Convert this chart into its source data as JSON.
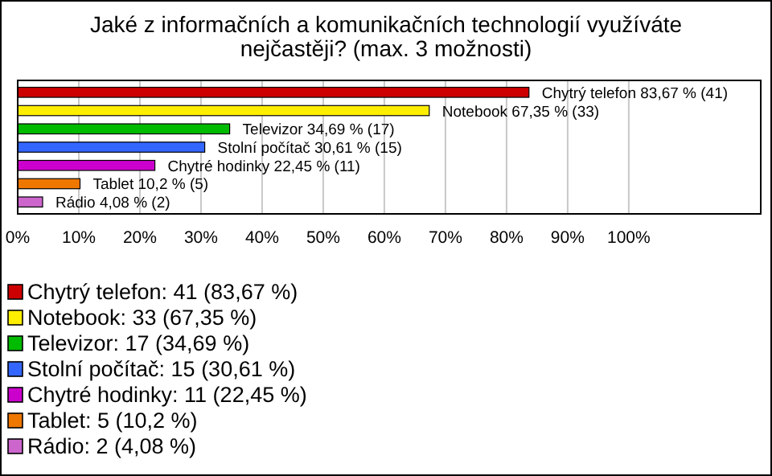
{
  "chart_data": {
    "type": "bar",
    "orientation": "horizontal",
    "title": "Jaké z informačních a komunikačních technologií využíváte nejčastěji? (max. 3 možnosti)",
    "categories": [
      null,
      null,
      null,
      null,
      null,
      null,
      null
    ],
    "values": [
      83.67,
      67.35,
      34.69,
      30.61,
      22.45,
      10.2,
      4.08
    ],
    "colors": [
      "#cc0000",
      "#ffee00",
      "#00bb00",
      "#3366ff",
      "#cc00cc",
      "#ee7700",
      "#cc66cc"
    ],
    "value_labels": [
      "Chytrý telefon 83,67 % (41)",
      "Notebook 67,35 % (33)",
      "Televizor 34,69 % (17)",
      "Stolní počítač 30,61 % (15)",
      "Chytré hodinky 22,45 % (11)",
      "Tablet 10,2 % (5)",
      "Rádio 4,08 % (2)"
    ],
    "xlim": [
      0,
      121.6
    ],
    "xticks": [
      {
        "value": 0,
        "label": "0%"
      },
      {
        "value": 10,
        "label": "10%"
      },
      {
        "value": 20,
        "label": "20%"
      },
      {
        "value": 30,
        "label": "30%"
      },
      {
        "value": 40,
        "label": "40%"
      },
      {
        "value": 50,
        "label": "50%"
      },
      {
        "value": 60,
        "label": "60%"
      },
      {
        "value": 70,
        "label": "70%"
      },
      {
        "value": 80,
        "label": "80%"
      },
      {
        "value": 90,
        "label": "90%"
      },
      {
        "value": 100,
        "label": "100%"
      }
    ],
    "grid": "x",
    "annotations": [
      "Chytrý telefon: 41 (83,67 %)",
      "Notebook: 33 (67,35 %)",
      "Televizor: 17 (34,69 %)",
      "Stolní počítač: 15 (30,61 %)",
      "Chytré hodinky: 11 (22,45 %)",
      "Tablet: 5 (10,2 %)",
      "Rádio: 2 (4,08 %)"
    ]
  }
}
